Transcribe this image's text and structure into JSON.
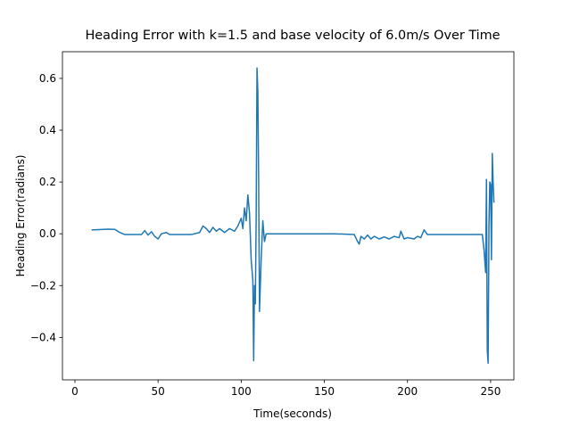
{
  "chart_data": {
    "type": "line",
    "title": "Heading Error with k=1.5 and base velocity of 6.0m/s Over Time",
    "x_label": "Time(seconds)",
    "y_label": "Heading Error(radians)",
    "xlim": [
      -7.5,
      264
    ],
    "ylim": [
      -0.564,
      0.703
    ],
    "xticks": [
      0,
      50,
      100,
      150,
      200,
      250
    ],
    "yticks": [
      {
        "value": -0.4,
        "label": "−0.4"
      },
      {
        "value": -0.2,
        "label": "−0.2"
      },
      {
        "value": 0,
        "label": "0.0"
      },
      0.2,
      0.4,
      0.6
    ],
    "series": [
      {
        "color": "#1f77b4",
        "x": [
          10,
          20,
          24,
          27,
          30,
          40,
          42,
          44,
          46,
          48,
          50,
          52,
          55,
          57,
          70,
          75,
          77,
          79,
          81,
          83,
          85,
          87,
          90,
          93,
          96,
          98,
          100,
          101,
          102,
          103,
          104,
          105,
          106,
          107,
          107.5,
          108,
          108.5,
          109,
          109.5,
          110,
          110.5,
          111,
          112,
          113,
          114,
          115,
          120,
          156,
          168,
          170,
          171,
          172,
          174,
          176,
          178,
          180,
          183,
          186,
          189,
          192,
          195,
          196,
          198,
          200,
          204,
          206,
          208,
          210,
          212,
          230,
          245,
          246,
          247,
          247.5,
          248,
          248.5,
          249,
          249.5,
          250,
          250.5,
          251,
          251.5,
          252
        ],
        "values": [
          0.015,
          0.018,
          0.017,
          0.005,
          -0.003,
          -0.003,
          0.012,
          -0.005,
          0.008,
          -0.01,
          -0.02,
          0,
          0.005,
          -0.003,
          -0.003,
          0.005,
          0.03,
          0.02,
          0.005,
          0.025,
          0.01,
          0.02,
          0.005,
          0.02,
          0.01,
          0.03,
          0.06,
          0.02,
          0.1,
          0.05,
          0.15,
          0.08,
          -0.1,
          -0.18,
          -0.49,
          -0.2,
          -0.27,
          0.06,
          0.64,
          0.55,
          0.2,
          -0.3,
          -0.1,
          0.05,
          -0.03,
          0,
          0,
          0,
          -0.003,
          -0.03,
          -0.04,
          -0.01,
          -0.02,
          -0.005,
          -0.02,
          -0.01,
          -0.02,
          -0.012,
          -0.02,
          -0.01,
          -0.015,
          0.01,
          -0.02,
          -0.015,
          -0.02,
          -0.01,
          -0.015,
          0.015,
          -0.003,
          -0.003,
          -0.003,
          -0.06,
          -0.15,
          0.21,
          -0.45,
          -0.5,
          0.03,
          0.2,
          0.19,
          -0.1,
          0.31,
          0.2,
          0.12
        ]
      }
    ]
  }
}
